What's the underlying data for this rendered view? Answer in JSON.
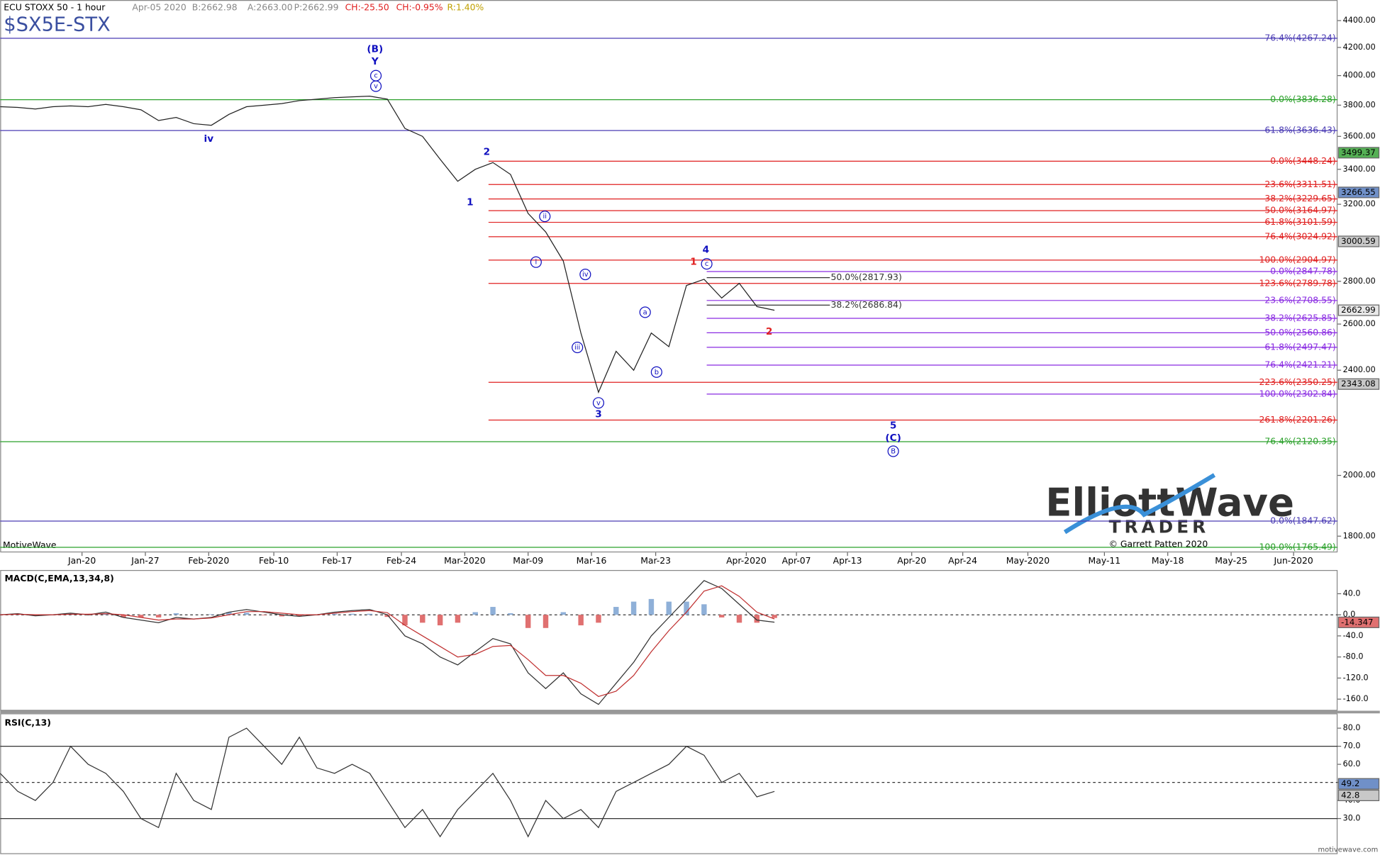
{
  "header": {
    "symbol_line": "ECU STOXX 50 - 1 hour",
    "date": "Apr-05 2020",
    "bid": "B:2662.98",
    "ask": "A:2663.00",
    "price": "P:2662.99",
    "change": "CH:-25.50",
    "change_pct": "CH:-0.95%",
    "range": "R:1.40%",
    "ticker": "$SX5E-STX"
  },
  "footer": {
    "platform": "MotiveWave",
    "copyright": "© Garrett Patten 2020",
    "site": "motivewave.com",
    "logo_main": "ElliottWave",
    "logo_sub": "TRADER"
  },
  "x_labels": [
    "Jan-20",
    "Jan-27",
    "Feb-2020",
    "Feb-10",
    "Feb-17",
    "Feb-24",
    "Mar-2020",
    "Mar-09",
    "Mar-16",
    "Mar-23",
    "Apr-2020",
    "Apr-07",
    "Apr-13",
    "Apr-20",
    "Apr-24",
    "May-2020",
    "May-11",
    "May-18",
    "May-25",
    "Jun-2020"
  ],
  "chart_data": [
    {
      "type": "line",
      "scale": "log",
      "color": "#222222",
      "values": [
        3790,
        3785,
        3775,
        3790,
        3795,
        3790,
        3805,
        3790,
        3770,
        3700,
        3720,
        3680,
        3670,
        3740,
        3790,
        3800,
        3810,
        3830,
        3840,
        3850,
        3855,
        3860,
        3840,
        3650,
        3600,
        3460,
        3330,
        3400,
        3440,
        3370,
        3150,
        3050,
        2900,
        2560,
        2310,
        2480,
        2400,
        2560,
        2500,
        2780,
        2810,
        2720,
        2790,
        2680,
        2663
      ],
      "ylim": [
        1750,
        4560
      ],
      "yticks": [
        {
          "value": 1800,
          "label": "1800.00"
        },
        {
          "value": 2000,
          "label": "2000.00"
        },
        {
          "value": 2400,
          "label": "2400.00"
        },
        {
          "value": 2600,
          "label": "2600.00"
        },
        {
          "value": 2800,
          "label": "2800.00"
        },
        {
          "value": 3200,
          "label": "3200.00"
        },
        {
          "value": 3400,
          "label": "3400.00"
        },
        {
          "value": 3600,
          "label": "3600.00"
        },
        {
          "value": 3800,
          "label": "3800.00"
        },
        {
          "value": 4000,
          "label": "4000.00"
        },
        {
          "value": 4200,
          "label": "4200.00"
        },
        {
          "value": 4400,
          "label": "4400.00"
        }
      ],
      "fib_levels": [
        {
          "label": "76.4%(4267.24)",
          "value": 4267.24,
          "color": "#4b3cb4"
        },
        {
          "label": "0.0%(3836.28)",
          "value": 3836.28,
          "color": "#2aa02a"
        },
        {
          "label": "61.8%(3636.43)",
          "value": 3636.43,
          "color": "#4b3cb4"
        },
        {
          "label": "0.0%(3448.24)",
          "value": 3448.24,
          "color": "#e02020"
        },
        {
          "label": "23.6%(3311.51)",
          "value": 3311.51,
          "color": "#e02020"
        },
        {
          "label": "38.2%(3229.65)",
          "value": 3229.65,
          "color": "#e02020"
        },
        {
          "label": "50.0%(3164.97)",
          "value": 3164.97,
          "color": "#e02020"
        },
        {
          "label": "61.8%(3101.59)",
          "value": 3101.59,
          "color": "#e02020"
        },
        {
          "label": "76.4%(3024.92)",
          "value": 3024.92,
          "color": "#e02020"
        },
        {
          "label": "100.0%(2904.97)",
          "value": 2904.97,
          "color": "#e02020"
        },
        {
          "label": "0.0%(2847.78)",
          "value": 2847.78,
          "color": "#8a2be2"
        },
        {
          "label": "50.0%(2817.93)",
          "value": 2817.93,
          "color": "#333333"
        },
        {
          "label": "123.6%(2789.78)",
          "value": 2789.78,
          "color": "#e02020"
        },
        {
          "label": "23.6%(2708.55)",
          "value": 2708.55,
          "color": "#8a2be2"
        },
        {
          "label": "38.2%(2686.84)",
          "value": 2686.84,
          "color": "#333333"
        },
        {
          "label": "38.2%(2625.85)",
          "value": 2625.85,
          "color": "#8a2be2"
        },
        {
          "label": "50.0%(2560.86)",
          "value": 2560.86,
          "color": "#8a2be2"
        },
        {
          "label": "61.8%(2497.47)",
          "value": 2497.47,
          "color": "#8a2be2"
        },
        {
          "label": "76.4%(2421.21)",
          "value": 2421.21,
          "color": "#8a2be2"
        },
        {
          "label": "223.6%(2350.25)",
          "value": 2350.25,
          "color": "#e02020"
        },
        {
          "label": "100.0%(2302.84)",
          "value": 2302.84,
          "color": "#8a2be2"
        },
        {
          "label": "261.8%(2201.26)",
          "value": 2201.26,
          "color": "#e02020"
        },
        {
          "label": "76.4%(2120.35)",
          "value": 2120.35,
          "color": "#2aa02a"
        },
        {
          "label": "0.0%(1847.62)",
          "value": 1847.62,
          "color": "#4b3cb4"
        },
        {
          "label": "100.0%(1765.49)",
          "value": 1765.49,
          "color": "#2aa02a"
        }
      ],
      "price_tags": [
        {
          "value": 3499.37,
          "color": "#55b055"
        },
        {
          "value": 3266.55,
          "color": "#7090c8"
        },
        {
          "value": 3000.59,
          "color": "#c8c8c8"
        },
        {
          "value": 2662.99,
          "color": "#e8e8e8"
        },
        {
          "value": 2343.08,
          "color": "#c8c8c8"
        }
      ],
      "wave_labels": [
        {
          "text": "(B)",
          "color": "#1010c0"
        },
        {
          "text": "Y",
          "color": "#1010c0"
        },
        {
          "text": "c",
          "color": "#1010c0"
        },
        {
          "text": "v",
          "color": "#1010c0"
        },
        {
          "text": "iv",
          "color": "#1010c0"
        },
        {
          "text": "2",
          "color": "#1010c0"
        },
        {
          "text": "1",
          "color": "#1010c0"
        },
        {
          "text": "ii",
          "color": "#1010c0"
        },
        {
          "text": "i",
          "color": "#1010c0"
        },
        {
          "text": "iv",
          "color": "#1010c0"
        },
        {
          "text": "iii",
          "color": "#1010c0"
        },
        {
          "text": "v",
          "color": "#1010c0"
        },
        {
          "text": "3",
          "color": "#1010c0"
        },
        {
          "text": "a",
          "color": "#1010c0"
        },
        {
          "text": "b",
          "color": "#1010c0"
        },
        {
          "text": "4",
          "color": "#1010c0"
        },
        {
          "text": "c",
          "color": "#1010c0"
        },
        {
          "text": "1",
          "color": "#e02020"
        },
        {
          "text": "2",
          "color": "#e02020"
        },
        {
          "text": "5",
          "color": "#1010c0"
        },
        {
          "text": "(C)",
          "color": "#1010c0"
        },
        {
          "text": "B",
          "color": "#1010c0"
        }
      ]
    },
    {
      "type": "line",
      "title": "MACD(C,EMA,13,34,8)",
      "series": [
        {
          "color": "#333333",
          "values": [
            0,
            2,
            -2,
            0,
            3,
            0,
            5,
            -5,
            -10,
            -15,
            -5,
            -8,
            -5,
            5,
            10,
            5,
            0,
            -3,
            0,
            5,
            8,
            10,
            0,
            -40,
            -55,
            -80,
            -95,
            -70,
            -45,
            -55,
            -110,
            -140,
            -110,
            -150,
            -170,
            -130,
            -90,
            -40,
            -5,
            30,
            65,
            50,
            20,
            -10,
            -14
          ]
        },
        {
          "color": "#c03030",
          "values": [
            0,
            1,
            0,
            0,
            1,
            1,
            2,
            0,
            -5,
            -10,
            -8,
            -8,
            -6,
            0,
            6,
            6,
            3,
            0,
            0,
            3,
            6,
            8,
            4,
            -20,
            -40,
            -60,
            -80,
            -75,
            -60,
            -58,
            -85,
            -115,
            -115,
            -130,
            -155,
            -145,
            -115,
            -70,
            -30,
            5,
            45,
            55,
            35,
            5,
            -8
          ]
        }
      ],
      "histogram": {
        "pos_color": "#8fb0d8",
        "neg_color": "#e07070",
        "values": [
          0,
          1,
          -2,
          0,
          2,
          -1,
          3,
          -5,
          -5,
          -5,
          3,
          0,
          1,
          5,
          4,
          -1,
          -3,
          -3,
          0,
          2,
          2,
          2,
          -4,
          -20,
          -15,
          -20,
          -15,
          5,
          15,
          3,
          -25,
          -25,
          5,
          -20,
          -15,
          15,
          25,
          30,
          25,
          25,
          20,
          -5,
          -15,
          -15,
          -6
        ]
      },
      "ylim": [
        -182,
        85
      ],
      "yticks": [
        {
          "value": 40,
          "label": "40.0"
        },
        {
          "value": 0,
          "label": "0.0"
        },
        {
          "value": -40,
          "label": "-40.0"
        },
        {
          "value": -80,
          "label": "-80.0"
        },
        {
          "value": -120,
          "label": "-120.0"
        },
        {
          "value": -160,
          "label": "-160.0"
        }
      ],
      "last_tag": -14.347
    },
    {
      "type": "line",
      "title": "RSI(C,13)",
      "color": "#333333",
      "values": [
        55,
        45,
        40,
        50,
        70,
        60,
        55,
        45,
        30,
        25,
        55,
        40,
        35,
        75,
        80,
        70,
        60,
        75,
        58,
        55,
        60,
        55,
        40,
        25,
        35,
        20,
        35,
        45,
        55,
        40,
        20,
        40,
        30,
        35,
        25,
        45,
        50,
        55,
        60,
        70,
        65,
        50,
        55,
        42,
        45
      ],
      "ylim": [
        10.8,
        87.7
      ],
      "yticks": [
        {
          "value": 30,
          "label": "30.0"
        },
        {
          "value": 40,
          "label": "40.0"
        },
        {
          "value": 50,
          "label": "50.0"
        },
        {
          "value": 60,
          "label": "60.0"
        },
        {
          "value": 70,
          "label": "70.0"
        },
        {
          "value": 80,
          "label": "80.0"
        }
      ],
      "last_tags": [
        49.2,
        42.8
      ]
    }
  ]
}
